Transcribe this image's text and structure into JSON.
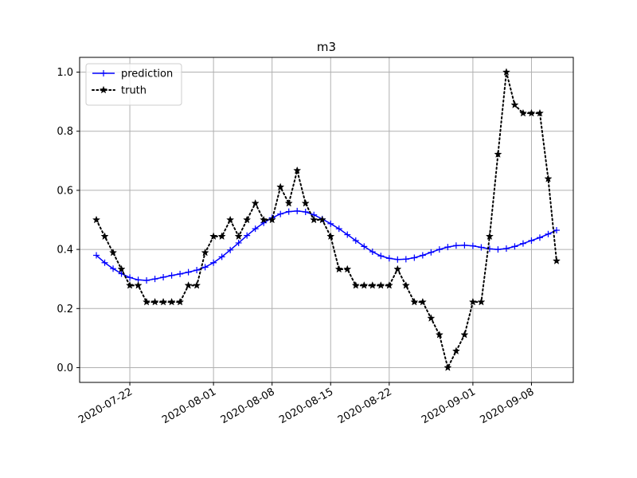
{
  "chart_data": {
    "type": "line",
    "title": "m3",
    "xlabel": "",
    "ylabel": "",
    "x_type": "date",
    "xlim": [
      "2020-07-16",
      "2020-09-13"
    ],
    "ylim": [
      -0.05,
      1.05
    ],
    "x_ticks": [
      "2020-07-22",
      "2020-08-01",
      "2020-08-08",
      "2020-08-15",
      "2020-08-22",
      "2020-09-01",
      "2020-09-08"
    ],
    "y_ticks": [
      0.0,
      0.2,
      0.4,
      0.6,
      0.8,
      1.0
    ],
    "y_tick_labels": [
      "0.0",
      "0.2",
      "0.4",
      "0.6",
      "0.8",
      "1.0"
    ],
    "grid": true,
    "legend_position": "top-left",
    "x": [
      "2020-07-18",
      "2020-07-19",
      "2020-07-20",
      "2020-07-21",
      "2020-07-22",
      "2020-07-23",
      "2020-07-24",
      "2020-07-25",
      "2020-07-26",
      "2020-07-27",
      "2020-07-28",
      "2020-07-29",
      "2020-07-30",
      "2020-07-31",
      "2020-08-01",
      "2020-08-02",
      "2020-08-03",
      "2020-08-04",
      "2020-08-05",
      "2020-08-06",
      "2020-08-07",
      "2020-08-08",
      "2020-08-09",
      "2020-08-10",
      "2020-08-11",
      "2020-08-12",
      "2020-08-13",
      "2020-08-14",
      "2020-08-15",
      "2020-08-16",
      "2020-08-17",
      "2020-08-18",
      "2020-08-19",
      "2020-08-20",
      "2020-08-21",
      "2020-08-22",
      "2020-08-23",
      "2020-08-24",
      "2020-08-25",
      "2020-08-26",
      "2020-08-27",
      "2020-08-28",
      "2020-08-29",
      "2020-08-30",
      "2020-08-31",
      "2020-09-01",
      "2020-09-02",
      "2020-09-03",
      "2020-09-04",
      "2020-09-05",
      "2020-09-06",
      "2020-09-07",
      "2020-09-08",
      "2020-09-09",
      "2020-09-10",
      "2020-09-11"
    ],
    "series": [
      {
        "name": "prediction",
        "color": "#0000ff",
        "line_style": "solid",
        "marker": "plus",
        "values": [
          0.38,
          0.355,
          0.335,
          0.318,
          0.305,
          0.297,
          0.295,
          0.3,
          0.306,
          0.312,
          0.317,
          0.323,
          0.33,
          0.34,
          0.355,
          0.375,
          0.398,
          0.422,
          0.447,
          0.47,
          0.49,
          0.507,
          0.52,
          0.528,
          0.53,
          0.527,
          0.517,
          0.503,
          0.487,
          0.47,
          0.45,
          0.43,
          0.41,
          0.392,
          0.378,
          0.37,
          0.366,
          0.367,
          0.372,
          0.38,
          0.39,
          0.4,
          0.408,
          0.413,
          0.414,
          0.412,
          0.407,
          0.402,
          0.4,
          0.403,
          0.41,
          0.42,
          0.43,
          0.44,
          0.452,
          0.465
        ]
      },
      {
        "name": "truth",
        "color": "#000000",
        "line_style": "dotted",
        "marker": "star",
        "values": [
          0.5,
          0.444,
          0.389,
          0.333,
          0.278,
          0.278,
          0.222,
          0.222,
          0.222,
          0.222,
          0.222,
          0.278,
          0.278,
          0.389,
          0.444,
          0.444,
          0.5,
          0.444,
          0.5,
          0.556,
          0.5,
          0.5,
          0.611,
          0.556,
          0.667,
          0.556,
          0.5,
          0.5,
          0.444,
          0.333,
          0.333,
          0.278,
          0.278,
          0.278,
          0.278,
          0.278,
          0.333,
          0.278,
          0.222,
          0.222,
          0.167,
          0.111,
          0.0,
          0.056,
          0.111,
          0.222,
          0.222,
          0.444,
          0.722,
          1.0,
          0.889,
          0.861,
          0.861,
          0.861,
          0.639,
          0.361
        ]
      }
    ]
  }
}
